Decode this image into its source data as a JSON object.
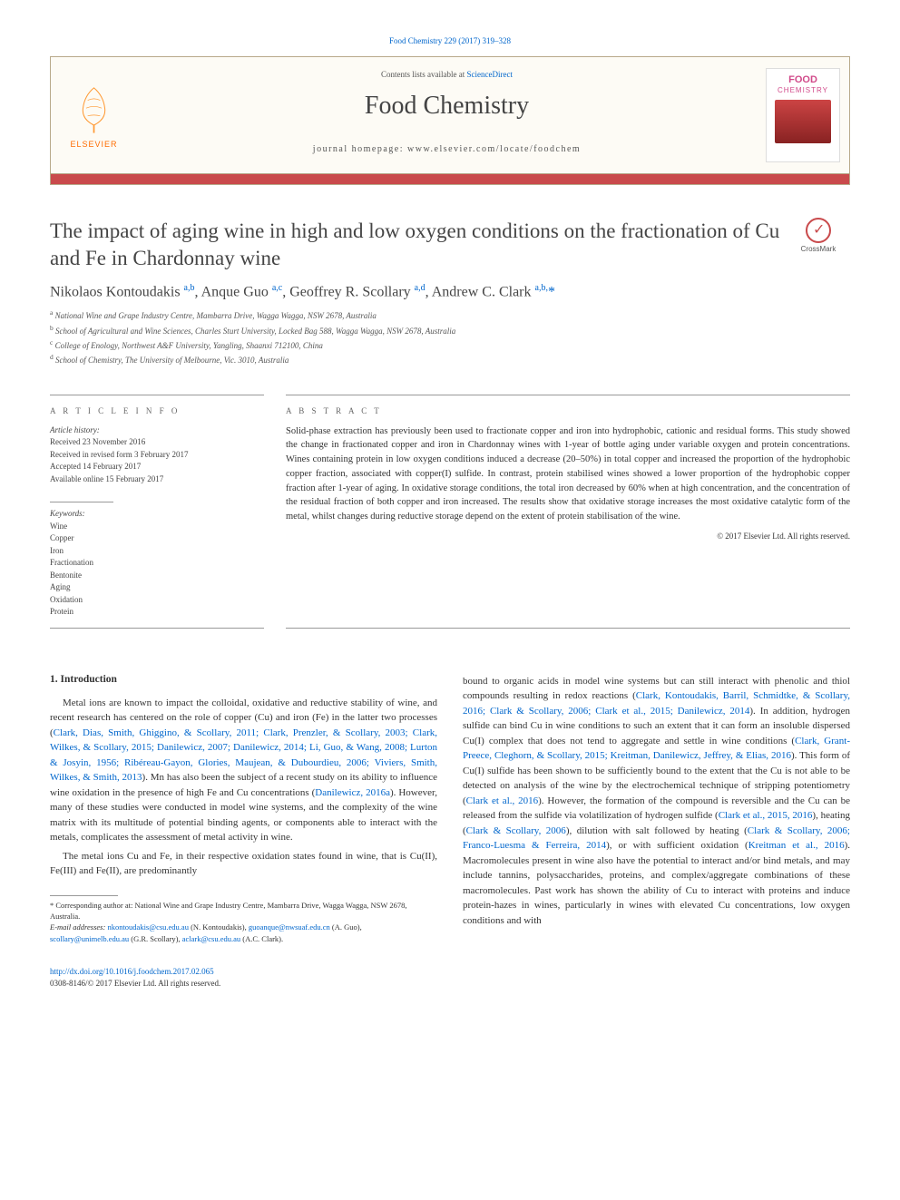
{
  "journal_citation": "Food Chemistry 229 (2017) 319–328",
  "header": {
    "contents_prefix": "Contents lists available at ",
    "contents_link": "ScienceDirect",
    "journal_name": "Food Chemistry",
    "homepage_label": "journal homepage: www.elsevier.com/locate/foodchem",
    "elsevier_label": "ELSEVIER",
    "cover_brand1": "FOOD",
    "cover_brand2": "CHEMISTRY"
  },
  "crossmark_label": "CrossMark",
  "article": {
    "title": "The impact of aging wine in high and low oxygen conditions on the fractionation of Cu and Fe in Chardonnay wine",
    "authors_html": "Nikolaos Kontoudakis <sup>a,b</sup>, Anque Guo <sup>a,c</sup>, Geoffrey R. Scollary <sup>a,d</sup>, Andrew C. Clark <sup>a,b,</sup><span class='star'>*</span>",
    "affiliations": [
      "a National Wine and Grape Industry Centre, Mambarra Drive, Wagga Wagga, NSW 2678, Australia",
      "b School of Agricultural and Wine Sciences, Charles Sturt University, Locked Bag 588, Wagga Wagga, NSW 2678, Australia",
      "c College of Enology, Northwest A&F University, Yangling, Shaanxi 712100, China",
      "d School of Chemistry, The University of Melbourne, Vic. 3010, Australia"
    ]
  },
  "info": {
    "header": "A R T I C L E   I N F O",
    "history_label": "Article history:",
    "history": [
      "Received 23 November 2016",
      "Received in revised form 3 February 2017",
      "Accepted 14 February 2017",
      "Available online 15 February 2017"
    ],
    "keywords_label": "Keywords:",
    "keywords": [
      "Wine",
      "Copper",
      "Iron",
      "Fractionation",
      "Bentonite",
      "Aging",
      "Oxidation",
      "Protein"
    ]
  },
  "abstract": {
    "header": "A B S T R A C T",
    "text": "Solid-phase extraction has previously been used to fractionate copper and iron into hydrophobic, cationic and residual forms. This study showed the change in fractionated copper and iron in Chardonnay wines with 1-year of bottle aging under variable oxygen and protein concentrations. Wines containing protein in low oxygen conditions induced a decrease (20–50%) in total copper and increased the proportion of the hydrophobic copper fraction, associated with copper(I) sulfide. In contrast, protein stabilised wines showed a lower proportion of the hydrophobic copper fraction after 1-year of aging. In oxidative storage conditions, the total iron decreased by 60% when at high concentration, and the concentration of the residual fraction of both copper and iron increased. The results show that oxidative storage increases the most oxidative catalytic form of the metal, whilst changes during reductive storage depend on the extent of protein stabilisation of the wine.",
    "copyright": "© 2017 Elsevier Ltd. All rights reserved."
  },
  "body": {
    "heading": "1. Introduction",
    "col1_p1_pre": "Metal ions are known to impact the colloidal, oxidative and reductive stability of wine, and recent research has centered on the role of copper (Cu) and iron (Fe) in the latter two processes (",
    "col1_refs1": "Clark, Dias, Smith, Ghiggino, & Scollary, 2011; Clark, Prenzler, & Scollary, 2003; Clark, Wilkes, & Scollary, 2015; Danilewicz, 2007; Danilewicz, 2014; Li, Guo, & Wang, 2008; Lurton & Josyin, 1956; Ribéreau-Gayon, Glories, Maujean, & Dubourdieu, 2006; Viviers, Smith, Wilkes, & Smith, 2013",
    "col1_p1_post": "). Mn has also been the subject of a recent study on its ability to influence wine oxidation in the presence of high Fe and Cu concentrations (",
    "col1_refs2": "Danilewicz, 2016a",
    "col1_p1_post2": "). However, many of these studies were conducted in model wine systems, and the complexity of the wine matrix with its multitude of potential binding agents, or components able to interact with the metals, complicates the assessment of metal activity in wine.",
    "col1_p2": "The metal ions Cu and Fe, in their respective oxidation states found in wine, that is Cu(II), Fe(III) and Fe(II), are predominantly",
    "col2_p1_pre": "bound to organic acids in model wine systems but can still interact with phenolic and thiol compounds resulting in redox reactions (",
    "col2_refs1": "Clark, Kontoudakis, Barril, Schmidtke, & Scollary, 2016; Clark & Scollary, 2006; Clark et al., 2015; Danilewicz, 2014",
    "col2_p1_mid1": "). In addition, hydrogen sulfide can bind Cu in wine conditions to such an extent that it can form an insoluble dispersed Cu(I) complex that does not tend to aggregate and settle in wine conditions (",
    "col2_refs2": "Clark, Grant-Preece, Cleghorn, & Scollary, 2015; Kreitman, Danilewicz, Jeffrey, & Elias, 2016",
    "col2_p1_mid2": "). This form of Cu(I) sulfide has been shown to be sufficiently bound to the extent that the Cu is not able to be detected on analysis of the wine by the electrochemical technique of stripping potentiometry (",
    "col2_refs3": "Clark et al., 2016",
    "col2_p1_mid3": "). However, the formation of the compound is reversible and the Cu can be released from the sulfide via volatilization of hydrogen sulfide (",
    "col2_refs4": "Clark et al., 2015, 2016",
    "col2_p1_mid4": "), heating (",
    "col2_refs5": "Clark & Scollary, 2006",
    "col2_p1_mid5": "), dilution with salt followed by heating (",
    "col2_refs6": "Clark & Scollary, 2006; Franco-Luesma & Ferreira, 2014",
    "col2_p1_mid6": "), or with sufficient oxidation (",
    "col2_refs7": "Kreitman et al., 2016",
    "col2_p1_post": "). Macromolecules present in wine also have the potential to interact and/or bind metals, and may include tannins, polysaccharides, proteins, and complex/aggregate combinations of these macromolecules. Past work has shown the ability of Cu to interact with proteins and induce protein-hazes in wines, particularly in wines with elevated Cu concentrations, low oxygen conditions and with"
  },
  "footnote": {
    "corresponding": "* Corresponding author at: National Wine and Grape Industry Centre, Mambarra Drive, Wagga Wagga, NSW 2678, Australia.",
    "emails_label": "E-mail addresses: ",
    "emails": [
      {
        "addr": "nkontoudakis@csu.edu.au",
        "who": " (N. Kontoudakis), "
      },
      {
        "addr": "guoanque@nwsuaf.edu.cn",
        "who": " (A. Guo), "
      },
      {
        "addr": "scollary@unimelb.edu.au",
        "who": " (G.R. Scollary), "
      },
      {
        "addr": "aclark@csu.edu.au",
        "who": " (A.C. Clark)."
      }
    ]
  },
  "footer": {
    "doi": "http://dx.doi.org/10.1016/j.foodchem.2017.02.065",
    "issn": "0308-8146/© 2017 Elsevier Ltd. All rights reserved."
  },
  "colors": {
    "link": "#0066cc",
    "elsevier_orange": "#ff6c00",
    "brand_red": "#c94a4c",
    "cover_pink": "#d14a8a",
    "rule_gray": "#999999",
    "text": "#333333"
  }
}
